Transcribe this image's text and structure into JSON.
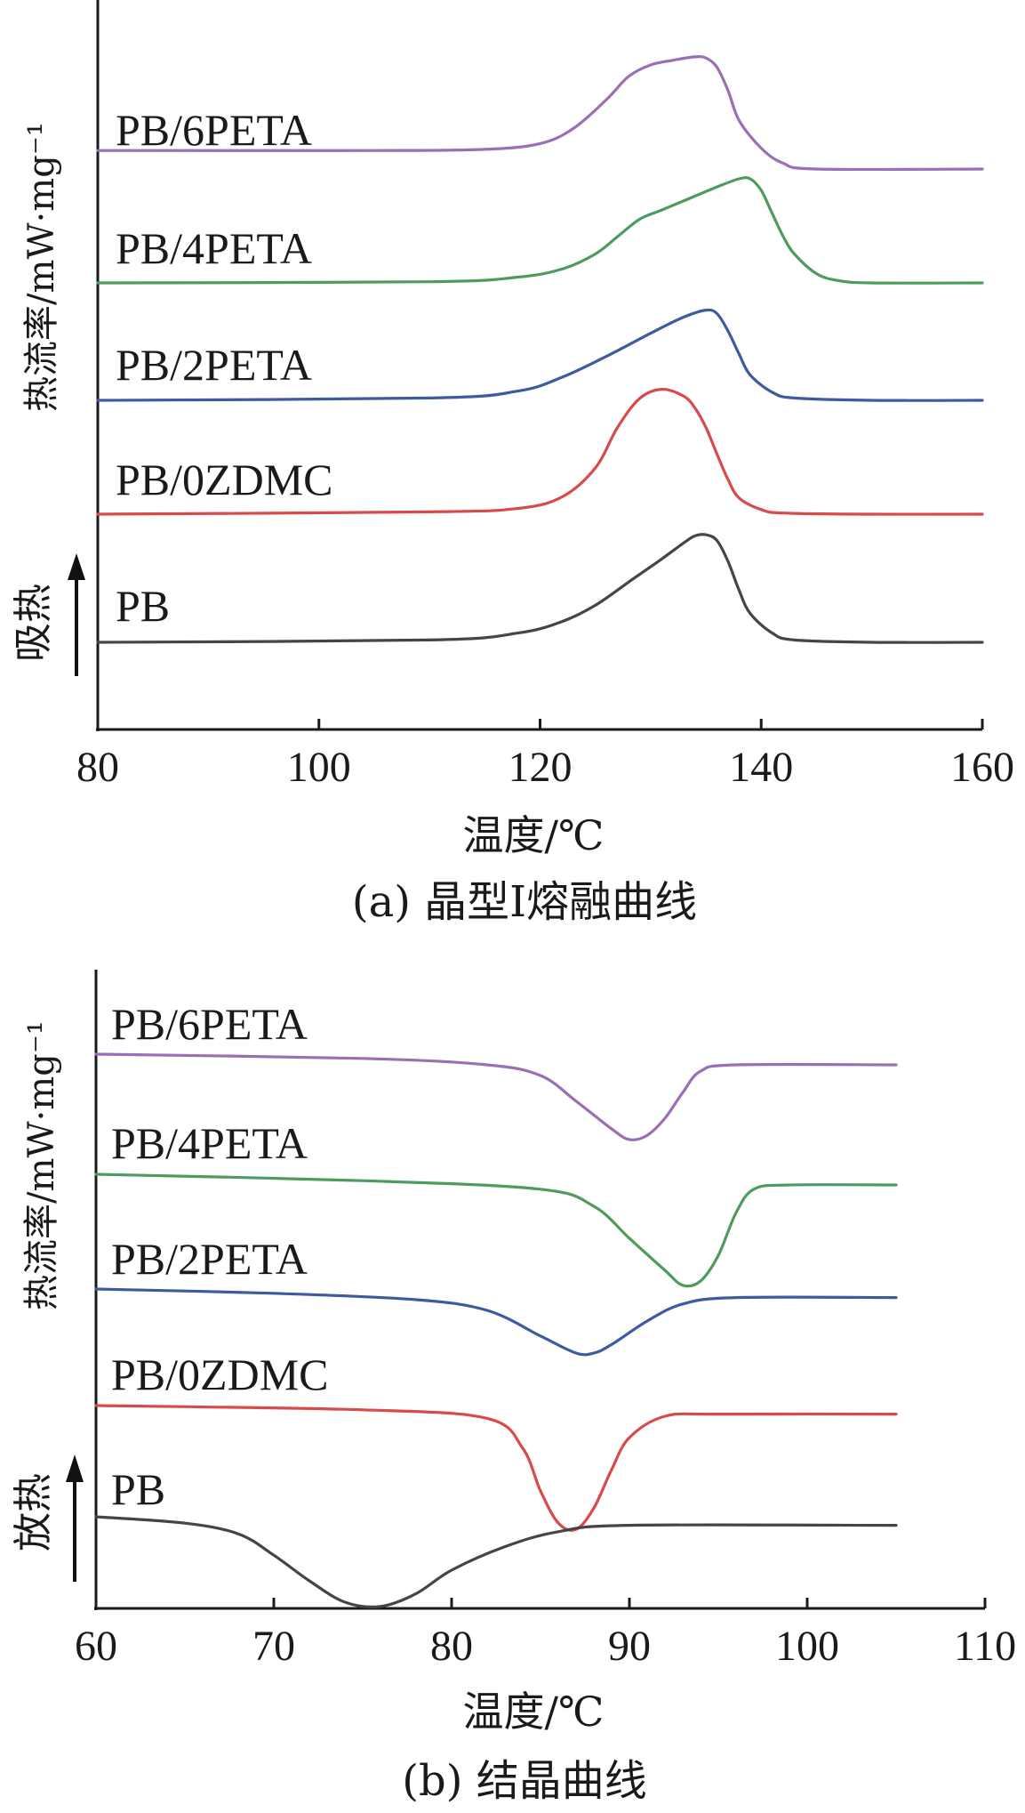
{
  "chart_data": [
    {
      "type": "line",
      "caption": "(a) 晶型Ⅰ熔融曲线",
      "xlabel": "温度/℃",
      "ylabel": "热流率/mW·mg⁻¹",
      "direction_label": "吸热",
      "xlim": [
        80,
        160
      ],
      "xticks": [
        80,
        100,
        120,
        140,
        160
      ],
      "x_start": 80,
      "x_end": 160,
      "series": [
        {
          "name": "PB/6PETA",
          "color": "#9b6fb5",
          "points": [
            [
              80,
              0.16
            ],
            [
              105,
              0.16
            ],
            [
              115,
              0.17
            ],
            [
              120,
              0.22
            ],
            [
              123,
              0.35
            ],
            [
              126,
              0.6
            ],
            [
              128,
              0.8
            ],
            [
              130,
              0.9
            ],
            [
              132,
              0.94
            ],
            [
              134,
              0.97
            ],
            [
              135,
              0.96
            ],
            [
              136,
              0.88
            ],
            [
              137,
              0.68
            ],
            [
              138,
              0.42
            ],
            [
              140,
              0.18
            ],
            [
              142,
              0.05
            ],
            [
              145,
              0.0
            ],
            [
              160,
              0.0
            ]
          ]
        },
        {
          "name": "PB/4PETA",
          "color": "#4e9b5f",
          "points": [
            [
              80,
              0.0
            ],
            [
              110,
              0.01
            ],
            [
              118,
              0.05
            ],
            [
              122,
              0.12
            ],
            [
              125,
              0.25
            ],
            [
              127,
              0.4
            ],
            [
              129,
              0.55
            ],
            [
              131,
              0.63
            ],
            [
              134,
              0.75
            ],
            [
              136,
              0.83
            ],
            [
              138,
              0.9
            ],
            [
              139,
              0.9
            ],
            [
              140,
              0.8
            ],
            [
              141,
              0.6
            ],
            [
              142,
              0.4
            ],
            [
              143,
              0.25
            ],
            [
              145,
              0.08
            ],
            [
              147,
              0.02
            ],
            [
              150,
              0.0
            ],
            [
              160,
              0.0
            ]
          ]
        },
        {
          "name": "PB/2PETA",
          "color": "#3e5aa0",
          "points": [
            [
              80,
              0.0
            ],
            [
              110,
              0.02
            ],
            [
              118,
              0.08
            ],
            [
              122,
              0.2
            ],
            [
              126,
              0.38
            ],
            [
              130,
              0.58
            ],
            [
              133,
              0.72
            ],
            [
              135,
              0.78
            ],
            [
              136,
              0.75
            ],
            [
              137,
              0.6
            ],
            [
              138,
              0.4
            ],
            [
              139,
              0.22
            ],
            [
              141,
              0.07
            ],
            [
              143,
              0.02
            ],
            [
              150,
              0.0
            ],
            [
              160,
              0.0
            ]
          ]
        },
        {
          "name": "PB/0ZDMC",
          "color": "#d94a4a",
          "points": [
            [
              80,
              0.0
            ],
            [
              110,
              0.02
            ],
            [
              118,
              0.05
            ],
            [
              122,
              0.15
            ],
            [
              125,
              0.4
            ],
            [
              127,
              0.75
            ],
            [
              129,
              1.0
            ],
            [
              131,
              1.08
            ],
            [
              133,
              1.02
            ],
            [
              134,
              0.92
            ],
            [
              135,
              0.75
            ],
            [
              136,
              0.52
            ],
            [
              137,
              0.3
            ],
            [
              138,
              0.14
            ],
            [
              140,
              0.04
            ],
            [
              142,
              0.01
            ],
            [
              150,
              0.0
            ],
            [
              160,
              0.0
            ]
          ]
        },
        {
          "name": "PB",
          "color": "#454545",
          "points": [
            [
              80,
              0.0
            ],
            [
              110,
              0.02
            ],
            [
              118,
              0.08
            ],
            [
              122,
              0.18
            ],
            [
              125,
              0.32
            ],
            [
              128,
              0.52
            ],
            [
              131,
              0.72
            ],
            [
              133,
              0.86
            ],
            [
              134,
              0.92
            ],
            [
              135,
              0.93
            ],
            [
              136,
              0.88
            ],
            [
              137,
              0.7
            ],
            [
              138,
              0.45
            ],
            [
              139,
              0.25
            ],
            [
              141,
              0.08
            ],
            [
              143,
              0.02
            ],
            [
              150,
              0.0
            ],
            [
              160,
              0.0
            ]
          ]
        }
      ]
    },
    {
      "type": "line",
      "caption": "(b) 结晶曲线",
      "xlabel": "温度/℃",
      "ylabel": "热流率/mW·mg⁻¹",
      "direction_label": "放热",
      "xlim": [
        60,
        110
      ],
      "xticks": [
        60,
        70,
        80,
        90,
        100,
        110
      ],
      "x_start": 60,
      "x_end": 105,
      "series": [
        {
          "name": "PB/6PETA",
          "color": "#9b6fb5",
          "points": [
            [
              60,
              0.0
            ],
            [
              75,
              -0.02
            ],
            [
              82,
              -0.05
            ],
            [
              85,
              -0.1
            ],
            [
              87,
              -0.22
            ],
            [
              89,
              -0.35
            ],
            [
              90,
              -0.4
            ],
            [
              91,
              -0.38
            ],
            [
              92,
              -0.3
            ],
            [
              93,
              -0.18
            ],
            [
              94,
              -0.08
            ],
            [
              96,
              -0.05
            ],
            [
              105,
              -0.05
            ]
          ]
        },
        {
          "name": "PB/4PETA",
          "color": "#4e9b5f",
          "points": [
            [
              60,
              0.0
            ],
            [
              75,
              -0.03
            ],
            [
              85,
              -0.07
            ],
            [
              88,
              -0.15
            ],
            [
              90,
              -0.3
            ],
            [
              92,
              -0.45
            ],
            [
              93,
              -0.52
            ],
            [
              94,
              -0.5
            ],
            [
              95,
              -0.38
            ],
            [
              96,
              -0.18
            ],
            [
              97,
              -0.07
            ],
            [
              99,
              -0.05
            ],
            [
              105,
              -0.05
            ]
          ]
        },
        {
          "name": "PB/2PETA",
          "color": "#3e5aa0",
          "points": [
            [
              60,
              0.0
            ],
            [
              70,
              -0.02
            ],
            [
              78,
              -0.05
            ],
            [
              82,
              -0.1
            ],
            [
              85,
              -0.22
            ],
            [
              87,
              -0.3
            ],
            [
              88,
              -0.3
            ],
            [
              89,
              -0.26
            ],
            [
              91,
              -0.15
            ],
            [
              93,
              -0.07
            ],
            [
              96,
              -0.04
            ],
            [
              105,
              -0.04
            ]
          ]
        },
        {
          "name": "PB/0ZDMC",
          "color": "#d94a4a",
          "points": [
            [
              60,
              0.0
            ],
            [
              75,
              -0.02
            ],
            [
              82,
              -0.06
            ],
            [
              84,
              -0.2
            ],
            [
              85,
              -0.4
            ],
            [
              86,
              -0.55
            ],
            [
              87,
              -0.58
            ],
            [
              88,
              -0.48
            ],
            [
              89,
              -0.3
            ],
            [
              90,
              -0.15
            ],
            [
              92,
              -0.05
            ],
            [
              95,
              -0.04
            ],
            [
              105,
              -0.04
            ]
          ]
        },
        {
          "name": "PB",
          "color": "#454545",
          "points": [
            [
              60,
              0.0
            ],
            [
              65,
              -0.03
            ],
            [
              68,
              -0.08
            ],
            [
              70,
              -0.18
            ],
            [
              72,
              -0.3
            ],
            [
              74,
              -0.4
            ],
            [
              76,
              -0.42
            ],
            [
              78,
              -0.36
            ],
            [
              80,
              -0.25
            ],
            [
              83,
              -0.14
            ],
            [
              86,
              -0.07
            ],
            [
              90,
              -0.04
            ],
            [
              105,
              -0.04
            ]
          ]
        }
      ]
    }
  ]
}
